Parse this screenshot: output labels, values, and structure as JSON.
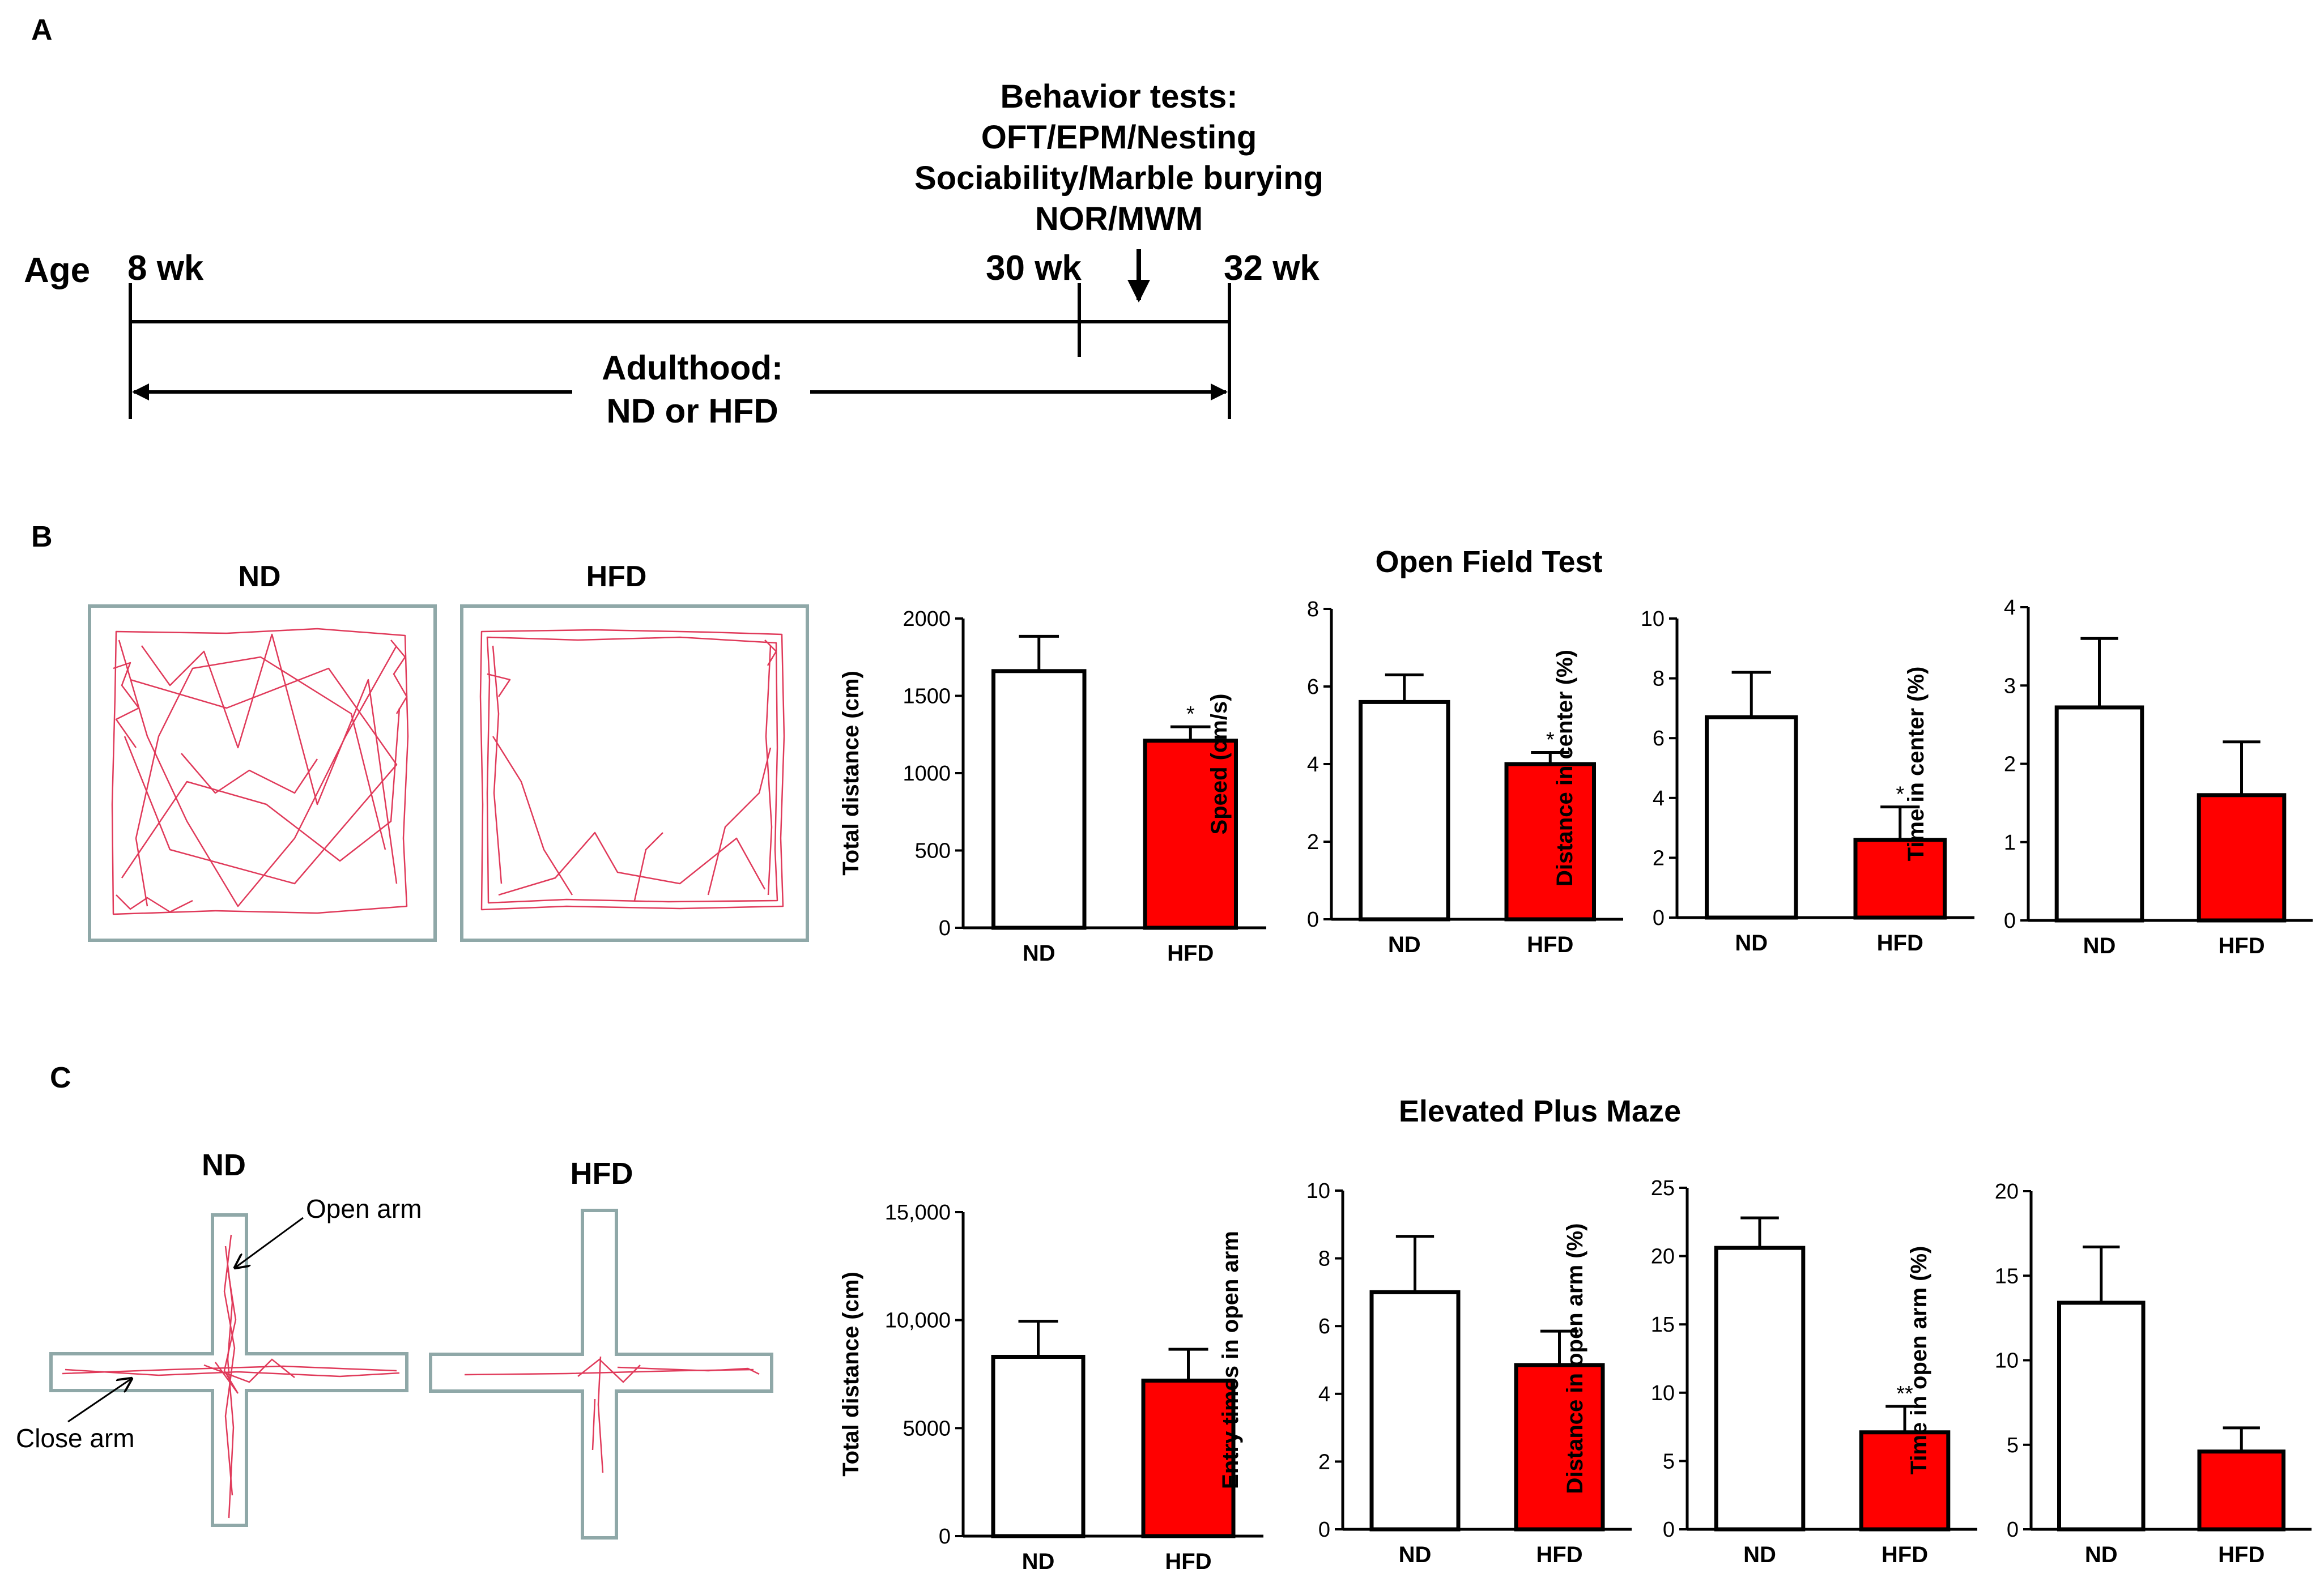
{
  "colors": {
    "ink": "#000000",
    "hfd_fill": "#ff0000",
    "nd_fill": "#ffffff",
    "track": "#e03a5a",
    "arena_border": "#8fa8a8"
  },
  "panel_a": {
    "label": "A",
    "age_label": "Age",
    "ticks": [
      "8 wk",
      "30 wk",
      "32 wk"
    ],
    "behavior_lines": [
      "Behavior tests:",
      "OFT/EPM/Nesting",
      "Sociability/Marble burying",
      "NOR/MWM"
    ],
    "adult_lines": [
      "Adulthood:",
      "ND or HFD"
    ]
  },
  "panel_b": {
    "label": "B",
    "title": "Open Field Test",
    "track_labels": [
      "ND",
      "HFD"
    ]
  },
  "panel_c": {
    "label": "C",
    "title": "Elevated Plus Maze",
    "track_labels": [
      "ND",
      "HFD"
    ],
    "annotations": [
      "Open arm",
      "Close arm"
    ]
  },
  "chart_data": [
    {
      "type": "bar",
      "group": "Open Field Test",
      "categories": [
        "ND",
        "HFD"
      ],
      "values": [
        1660,
        1210
      ],
      "errors": [
        225,
        90
      ],
      "ylabel": "Total distance (cm)",
      "ylim": [
        0,
        2000
      ],
      "yticks": [
        0,
        500,
        1000,
        1500,
        2000
      ],
      "ytick_labels": [
        "0",
        "500",
        "1000",
        "1500",
        "2000"
      ],
      "annotations": [
        "",
        "*"
      ]
    },
    {
      "type": "bar",
      "group": "Open Field Test",
      "categories": [
        "ND",
        "HFD"
      ],
      "values": [
        5.6,
        4.0
      ],
      "errors": [
        0.7,
        0.3
      ],
      "ylabel": "Speed (cm/s)",
      "ylim": [
        0,
        8
      ],
      "yticks": [
        0,
        2,
        4,
        6,
        8
      ],
      "ytick_labels": [
        "0",
        "2",
        "4",
        "6",
        "8"
      ],
      "annotations": [
        "",
        "*"
      ]
    },
    {
      "type": "bar",
      "group": "Open Field Test",
      "categories": [
        "ND",
        "HFD"
      ],
      "values": [
        6.7,
        2.6
      ],
      "errors": [
        1.5,
        1.1
      ],
      "ylabel": "Distance in center (%)",
      "ylim": [
        0,
        10
      ],
      "yticks": [
        0,
        2,
        4,
        6,
        8,
        10
      ],
      "ytick_labels": [
        "0",
        "2",
        "4",
        "6",
        "8",
        "10"
      ],
      "annotations": [
        "",
        "*"
      ]
    },
    {
      "type": "bar",
      "group": "Open Field Test",
      "categories": [
        "ND",
        "HFD"
      ],
      "values": [
        2.72,
        1.6
      ],
      "errors": [
        0.88,
        0.68
      ],
      "ylabel": "Time in center (%)",
      "ylim": [
        0,
        4
      ],
      "yticks": [
        0,
        1,
        2,
        3,
        4
      ],
      "ytick_labels": [
        "0",
        "1",
        "2",
        "3",
        "4"
      ],
      "annotations": [
        "",
        ""
      ]
    },
    {
      "type": "bar",
      "group": "Elevated Plus Maze",
      "categories": [
        "ND",
        "HFD"
      ],
      "values": [
        8300,
        7200
      ],
      "errors": [
        1650,
        1450
      ],
      "ylabel": "Total distance (cm)",
      "ylim": [
        0,
        15000
      ],
      "yticks": [
        0,
        5000,
        10000,
        15000
      ],
      "ytick_labels": [
        "0",
        "5000",
        "10,000",
        "15,000"
      ],
      "annotations": [
        "",
        ""
      ]
    },
    {
      "type": "bar",
      "group": "Elevated Plus Maze",
      "categories": [
        "ND",
        "HFD"
      ],
      "values": [
        7.0,
        4.85
      ],
      "errors": [
        1.65,
        1.0
      ],
      "ylabel": "Entry times in open arm",
      "ylim": [
        0,
        10
      ],
      "yticks": [
        0,
        2,
        4,
        6,
        8,
        10
      ],
      "ytick_labels": [
        "0",
        "2",
        "4",
        "6",
        "8",
        "10"
      ],
      "annotations": [
        "",
        ""
      ]
    },
    {
      "type": "bar",
      "group": "Elevated Plus Maze",
      "categories": [
        "ND",
        "HFD"
      ],
      "values": [
        20.6,
        7.1
      ],
      "errors": [
        2.2,
        1.9
      ],
      "ylabel": "Distance in open arm (%)",
      "ylim": [
        0,
        25
      ],
      "yticks": [
        0,
        5,
        10,
        15,
        20,
        25
      ],
      "ytick_labels": [
        "0",
        "5",
        "10",
        "15",
        "20",
        "25"
      ],
      "annotations": [
        "",
        "**"
      ]
    },
    {
      "type": "bar",
      "group": "Elevated Plus Maze",
      "categories": [
        "ND",
        "HFD"
      ],
      "values": [
        13.4,
        4.6
      ],
      "errors": [
        3.3,
        1.4
      ],
      "ylabel": "Time in open arm (%)",
      "ylim": [
        0,
        20
      ],
      "yticks": [
        0,
        5,
        10,
        15,
        20
      ],
      "ytick_labels": [
        "0",
        "5",
        "10",
        "15",
        "20"
      ],
      "annotations": [
        "",
        ""
      ]
    }
  ]
}
